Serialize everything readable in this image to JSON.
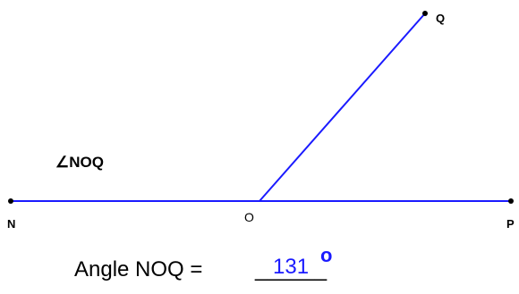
{
  "points": {
    "N": "N",
    "O": "O",
    "P": "P",
    "Q": "Q"
  },
  "angle_label": "∠NOQ",
  "question": {
    "prefix": "Angle NOQ = ",
    "blank": "______",
    "answer": "131",
    "degree": "o"
  },
  "colors": {
    "line": "#1a1aff",
    "point": "#000000",
    "answer": "#1a1aff"
  }
}
